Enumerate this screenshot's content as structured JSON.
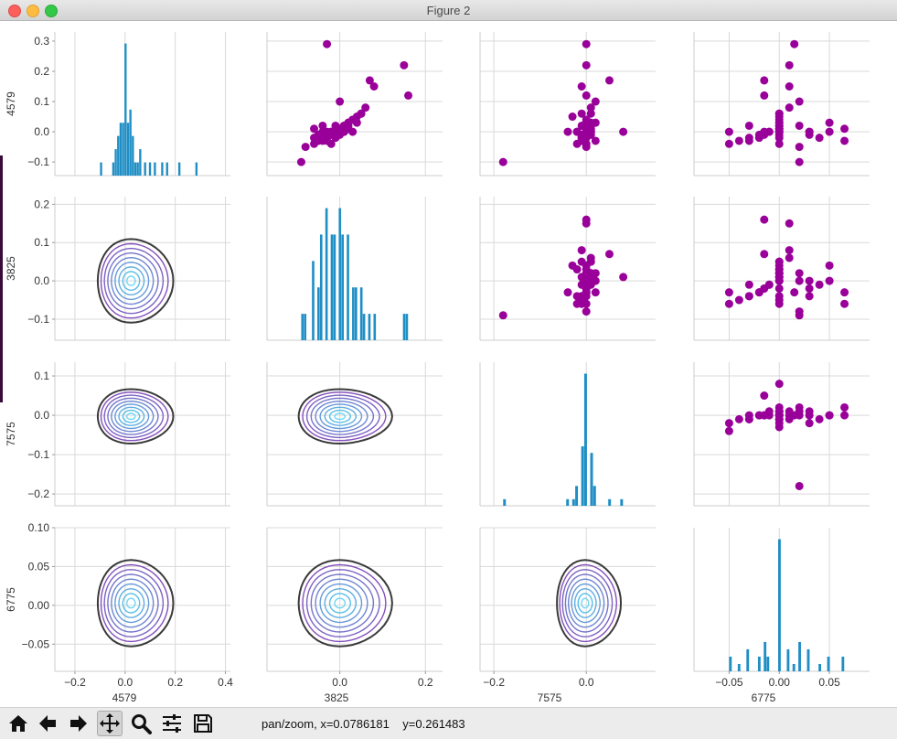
{
  "window": {
    "title": "Figure 2"
  },
  "status": {
    "text": "pan/zoom, x=0.0786181    y=0.261483"
  },
  "toolbar": {
    "buttons": [
      {
        "name": "home",
        "icon": "home-icon"
      },
      {
        "name": "back",
        "icon": "arrow-left-icon"
      },
      {
        "name": "forward",
        "icon": "arrow-right-icon"
      },
      {
        "name": "pan",
        "icon": "move-icon"
      },
      {
        "name": "zoom",
        "icon": "magnifier-icon"
      },
      {
        "name": "subplots",
        "icon": "sliders-icon"
      },
      {
        "name": "save",
        "icon": "floppy-icon"
      }
    ]
  },
  "colors": {
    "hist": "#1f8ec5",
    "scatter": "#990099",
    "grid": "#d9d9d9",
    "spine": "#cccccc",
    "kde_outer": "#3a3a3a",
    "kde_inner": "#6fd6f5"
  },
  "chart_data": {
    "type": "pairgrid",
    "variables": [
      "4579",
      "3825",
      "7575",
      "6775"
    ],
    "row_ticks": [
      [
        "0.3",
        "0.2",
        "0.1",
        "0.0",
        "−0.1"
      ],
      [
        "0.2",
        "0.1",
        "0.0",
        "−0.1"
      ],
      [
        "0.1",
        "0.0",
        "−0.1",
        "−0.2"
      ],
      [
        "0.10",
        "0.05",
        "0.00",
        "−0.05"
      ]
    ],
    "col_ticks": [
      [
        "−0.2",
        "0.0",
        "0.2",
        "0.4"
      ],
      [
        "0.0",
        "0.2"
      ],
      [
        "−0.2",
        "0.0"
      ],
      [
        "−0.05",
        "0.00",
        "0.05"
      ]
    ],
    "ranges": {
      "4579": [
        -0.28,
        0.42
      ],
      "3825": [
        -0.17,
        0.24
      ],
      "7575": [
        -0.23,
        0.15
      ],
      "6775": [
        -0.085,
        0.09
      ]
    },
    "y_ranges": {
      "4579": [
        -0.145,
        0.33
      ],
      "3825": [
        -0.155,
        0.22
      ],
      "7575": [
        -0.23,
        0.135
      ],
      "6775": [
        -0.085,
        0.1
      ]
    },
    "series": {
      "4579": [
        -0.04,
        -0.03,
        -0.03,
        -0.02,
        -0.02,
        -0.01,
        -0.01,
        0.0,
        0.0,
        0.0,
        0.01,
        0.01,
        0.02,
        0.02,
        0.03,
        0.03,
        0.04,
        0.05,
        0.06,
        0.08,
        0.15,
        0.22,
        0.29,
        0.1,
        0.02,
        -0.05,
        0.0,
        0.0,
        -0.01,
        -0.02,
        0.03,
        0.01,
        -0.03,
        0.0,
        0.12,
        0.0,
        -0.01,
        0.01,
        0.02,
        0.0,
        -0.1,
        -0.04,
        0.06,
        0.02,
        -0.02,
        0.0,
        0.0,
        0.17
      ],
      "3825": [
        -0.06,
        -0.05,
        -0.04,
        -0.04,
        -0.03,
        -0.03,
        -0.02,
        -0.02,
        -0.01,
        -0.01,
        0.0,
        0.0,
        0.01,
        0.01,
        0.02,
        0.02,
        0.03,
        0.04,
        0.05,
        0.06,
        0.08,
        0.15,
        -0.03,
        0.0,
        0.02,
        -0.08,
        -0.04,
        -0.02,
        0.0,
        -0.01,
        0.04,
        -0.06,
        -0.03,
        0.03,
        0.16,
        0.01,
        -0.05,
        0.02,
        -0.01,
        -0.03,
        -0.09,
        -0.02,
        0.05,
        -0.04,
        -0.06,
        0.0,
        0.01,
        0.07
      ],
      "7575": [
        -0.02,
        -0.01,
        -0.01,
        -0.01,
        0.0,
        0.0,
        0.0,
        0.0,
        0.0,
        0.01,
        0.01,
        0.0,
        -0.01,
        0.0,
        0.01,
        0.02,
        0.0,
        -0.03,
        -0.01,
        0.01,
        -0.01,
        0.0,
        0.0,
        0.02,
        0.01,
        0.0,
        -0.02,
        0.0,
        0.01,
        -0.01,
        0.0,
        0.0,
        0.02,
        -0.02,
        0.0,
        0.01,
        -0.01,
        0.0,
        0.0,
        -0.04,
        -0.18,
        0.0,
        0.01,
        0.0,
        -0.01,
        0.0,
        0.08,
        0.05
      ],
      "6775": [
        -0.05,
        -0.04,
        -0.03,
        -0.03,
        -0.02,
        -0.02,
        -0.015,
        -0.015,
        -0.01,
        -0.01,
        0.0,
        0.0,
        0.0,
        0.0,
        0.0,
        0.0,
        0.0,
        0.0,
        0.0,
        0.01,
        0.01,
        0.01,
        0.015,
        0.02,
        0.02,
        0.02,
        0.03,
        0.03,
        0.03,
        0.04,
        0.05,
        0.065,
        0.065,
        0.0,
        -0.015,
        0.0,
        0.0,
        0.0,
        -0.03,
        -0.05,
        0.02,
        0.0,
        0.0,
        0.0,
        0.0,
        0.05,
        0.0,
        -0.015
      ]
    }
  }
}
